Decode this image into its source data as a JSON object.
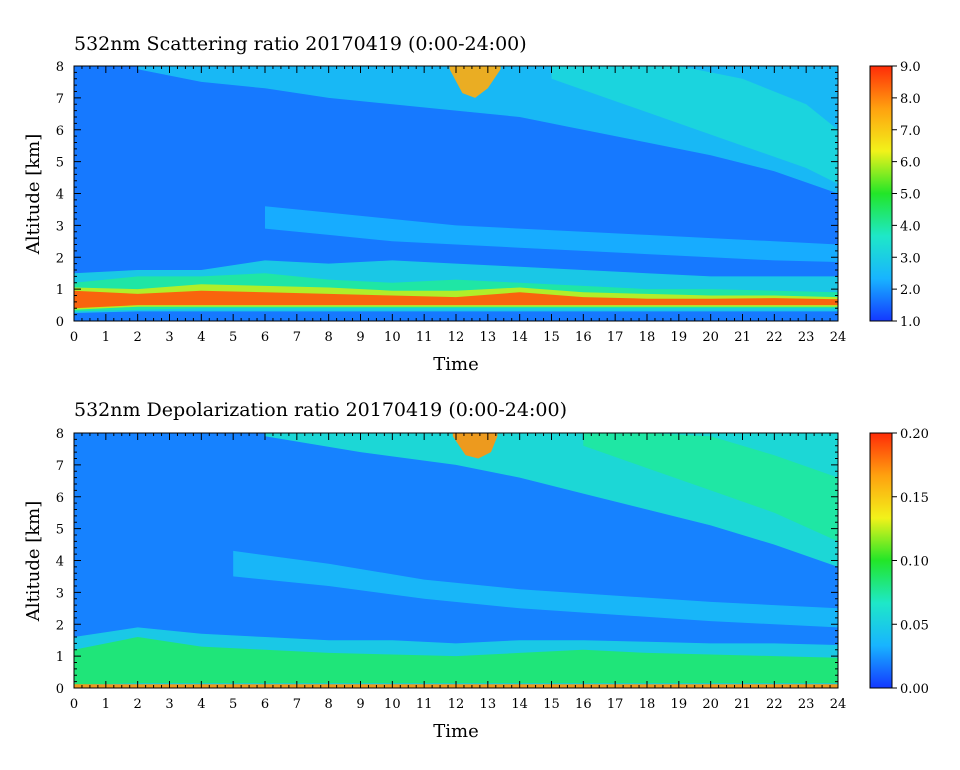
{
  "chart_data": [
    {
      "type": "heatmap",
      "title": "532nm Scattering ratio  20170419 (0:00-24:00)",
      "xlabel": "Time",
      "ylabel": "Altitude [km]",
      "xlim": [
        0,
        24
      ],
      "ylim": [
        0,
        8
      ],
      "x_ticks": [
        "0",
        "1",
        "2",
        "3",
        "4",
        "5",
        "6",
        "7",
        "8",
        "9",
        "10",
        "11",
        "12",
        "13",
        "14",
        "15",
        "16",
        "17",
        "18",
        "19",
        "20",
        "21",
        "22",
        "23",
        "24"
      ],
      "y_ticks": [
        "0",
        "1",
        "2",
        "3",
        "4",
        "5",
        "6",
        "7",
        "8"
      ],
      "colorbar": {
        "range": [
          1.0,
          9.0
        ],
        "ticks": [
          "1.0",
          "2.0",
          "3.0",
          "4.0",
          "5.0",
          "6.0",
          "7.0",
          "8.0",
          "9.0"
        ],
        "colors": [
          "#1438ff",
          "#18b4ff",
          "#1ee8c8",
          "#22e628",
          "#f2f21a",
          "#ffa10f",
          "#ff2c08"
        ]
      },
      "background_value": 1.7,
      "layers": [
        {
          "x": [
            0,
            2,
            4,
            6,
            8,
            10,
            12,
            14,
            16,
            18,
            20,
            22,
            24
          ],
          "bottom": [
            0.25,
            0.3,
            0.3,
            0.3,
            0.3,
            0.3,
            0.3,
            0.3,
            0.3,
            0.3,
            0.3,
            0.3,
            0.3
          ],
          "top": [
            1.5,
            1.6,
            1.6,
            1.9,
            1.8,
            1.9,
            1.8,
            1.7,
            1.6,
            1.5,
            1.4,
            1.4,
            1.4
          ],
          "value": 3.0
        },
        {
          "x": [
            0,
            2,
            4,
            6,
            8,
            10,
            12,
            14,
            16,
            18,
            20,
            22,
            24
          ],
          "bottom": [
            0.3,
            0.35,
            0.4,
            0.4,
            0.4,
            0.4,
            0.4,
            0.4,
            0.4,
            0.4,
            0.4,
            0.4,
            0.4
          ],
          "top": [
            1.2,
            1.4,
            1.4,
            1.5,
            1.3,
            1.2,
            1.3,
            1.2,
            1.1,
            1.0,
            1.0,
            0.95,
            0.9
          ],
          "value": 4.0
        },
        {
          "x": [
            0,
            2,
            4,
            6,
            8,
            10,
            12,
            14,
            16,
            18,
            20,
            22,
            24
          ],
          "bottom": [
            0.35,
            0.45,
            0.45,
            0.45,
            0.45,
            0.45,
            0.45,
            0.45,
            0.45,
            0.45,
            0.45,
            0.45,
            0.45
          ],
          "top": [
            1.05,
            1.0,
            1.15,
            1.1,
            1.05,
            0.95,
            0.95,
            1.05,
            0.9,
            0.85,
            0.8,
            0.8,
            0.75
          ],
          "value": 6.0
        },
        {
          "x": [
            0,
            2,
            4,
            6,
            8,
            10,
            12,
            14,
            16,
            18,
            20,
            22,
            24
          ],
          "bottom": [
            0.4,
            0.5,
            0.5,
            0.5,
            0.5,
            0.5,
            0.5,
            0.5,
            0.5,
            0.5,
            0.5,
            0.5,
            0.5
          ],
          "top": [
            0.95,
            0.85,
            0.95,
            0.9,
            0.85,
            0.8,
            0.75,
            0.9,
            0.75,
            0.7,
            0.7,
            0.72,
            0.68
          ],
          "value": 8.5
        },
        {
          "x": [
            6,
            8,
            10,
            12,
            14,
            16,
            18,
            20,
            22,
            24
          ],
          "bottom": [
            2.9,
            2.7,
            2.5,
            2.4,
            2.3,
            2.2,
            2.1,
            2.0,
            1.9,
            1.85
          ],
          "top": [
            3.6,
            3.4,
            3.2,
            3.0,
            2.9,
            2.8,
            2.7,
            2.6,
            2.5,
            2.4
          ],
          "value": 2.3
        },
        {
          "x": [
            2,
            4,
            6,
            8,
            10,
            12,
            14,
            16,
            18,
            20,
            22,
            24
          ],
          "bottom": [
            7.9,
            7.5,
            7.3,
            7.0,
            6.8,
            6.6,
            6.4,
            6.0,
            5.6,
            5.2,
            4.7,
            4.0
          ],
          "top": [
            8,
            8,
            8,
            8,
            8,
            8,
            8,
            8,
            8,
            8,
            8,
            8
          ],
          "value": 2.6
        },
        {
          "x": [
            15,
            17,
            19,
            21,
            23,
            24
          ],
          "bottom": [
            7.6,
            6.9,
            6.2,
            5.5,
            4.8,
            4.3
          ],
          "top": [
            8,
            8,
            8,
            7.6,
            6.8,
            6.0
          ],
          "value": 3.2
        },
        {
          "x": [
            11.8,
            12.2,
            12.6,
            13.0,
            13.4
          ],
          "bottom": [
            7.9,
            7.15,
            7.0,
            7.3,
            7.9
          ],
          "top": [
            8,
            8,
            8,
            8,
            8
          ],
          "value": 7.5
        }
      ]
    },
    {
      "type": "heatmap",
      "title": "532nm Depolarization ratio  20170419 (0:00-24:00)",
      "xlabel": "Time",
      "ylabel": "Altitude [km]",
      "xlim": [
        0,
        24
      ],
      "ylim": [
        0,
        8
      ],
      "x_ticks": [
        "0",
        "1",
        "2",
        "3",
        "4",
        "5",
        "6",
        "7",
        "8",
        "9",
        "10",
        "11",
        "12",
        "13",
        "14",
        "15",
        "16",
        "17",
        "18",
        "19",
        "20",
        "21",
        "22",
        "23",
        "24"
      ],
      "y_ticks": [
        "0",
        "1",
        "2",
        "3",
        "4",
        "5",
        "6",
        "7",
        "8"
      ],
      "colorbar": {
        "range": [
          0.0,
          0.2
        ],
        "ticks": [
          "0.00",
          "0.05",
          "0.10",
          "0.15",
          "0.20"
        ],
        "colors": [
          "#1438ff",
          "#18b4ff",
          "#1ee8c8",
          "#22e628",
          "#f2f21a",
          "#ffa10f",
          "#ff2c08"
        ]
      },
      "background_value": 0.02,
      "layers": [
        {
          "x": [
            0,
            2,
            4,
            6,
            8,
            10,
            12,
            14,
            16,
            18,
            20,
            22,
            24
          ],
          "bottom": [
            0.0,
            0.0,
            0.0,
            0.0,
            0.0,
            0.0,
            0.0,
            0.0,
            0.0,
            0.0,
            0.0,
            0.0,
            0.0
          ],
          "top": [
            1.6,
            1.9,
            1.7,
            1.6,
            1.5,
            1.5,
            1.4,
            1.5,
            1.5,
            1.45,
            1.4,
            1.4,
            1.35
          ],
          "value": 0.05
        },
        {
          "x": [
            0,
            2,
            4,
            6,
            8,
            10,
            12,
            14,
            16,
            18,
            20,
            22,
            24
          ],
          "bottom": [
            0.1,
            0.15,
            0.15,
            0.15,
            0.15,
            0.15,
            0.15,
            0.15,
            0.15,
            0.15,
            0.15,
            0.15,
            0.15
          ],
          "top": [
            1.2,
            1.6,
            1.3,
            1.2,
            1.1,
            1.05,
            1.0,
            1.1,
            1.2,
            1.1,
            1.05,
            1.0,
            0.95
          ],
          "value": 0.085
        },
        {
          "x": [
            0,
            4,
            8,
            12,
            16,
            20,
            24
          ],
          "bottom": [
            0.0,
            0.0,
            0.0,
            0.0,
            0.0,
            0.0,
            0.0
          ],
          "top": [
            0.12,
            0.12,
            0.12,
            0.12,
            0.12,
            0.12,
            0.12
          ],
          "value": 0.17
        },
        {
          "x": [
            5,
            8,
            11,
            14,
            17,
            20,
            22,
            24
          ],
          "bottom": [
            3.5,
            3.2,
            2.8,
            2.5,
            2.3,
            2.1,
            2.0,
            1.9
          ],
          "top": [
            4.3,
            3.9,
            3.4,
            3.1,
            2.9,
            2.7,
            2.6,
            2.5
          ],
          "value": 0.038
        },
        {
          "x": [
            6,
            9,
            12,
            14,
            16,
            18,
            20,
            22,
            24
          ],
          "bottom": [
            7.9,
            7.4,
            7.0,
            6.6,
            6.1,
            5.6,
            5.1,
            4.5,
            3.8
          ],
          "top": [
            8,
            8,
            8,
            8,
            8,
            8,
            8,
            8,
            8
          ],
          "value": 0.06
        },
        {
          "x": [
            16,
            18,
            20,
            22,
            24
          ],
          "bottom": [
            7.6,
            6.9,
            6.2,
            5.5,
            4.6
          ],
          "top": [
            8,
            8,
            7.9,
            7.3,
            6.6
          ],
          "value": 0.075
        },
        {
          "x": [
            11.9,
            12.3,
            12.7,
            13.1,
            13.3
          ],
          "bottom": [
            7.9,
            7.3,
            7.2,
            7.4,
            7.9
          ],
          "top": [
            8,
            8,
            8,
            8,
            8
          ],
          "value": 0.17
        }
      ]
    }
  ]
}
